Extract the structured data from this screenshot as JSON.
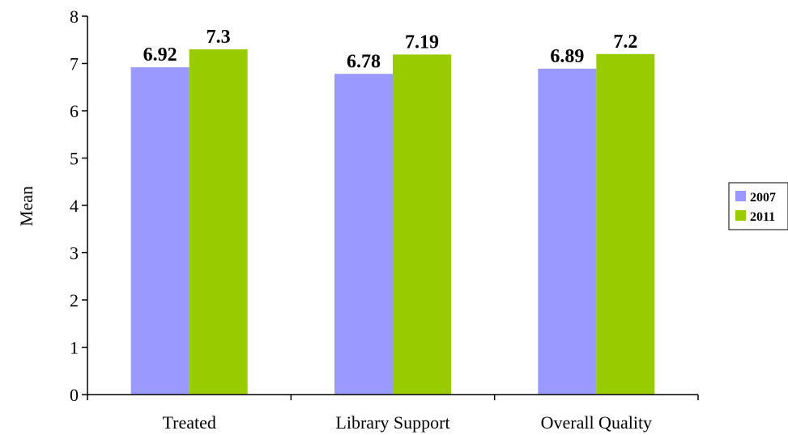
{
  "chart_data": {
    "type": "bar",
    "categories": [
      "Treated",
      "Library Support",
      "Overall Quality"
    ],
    "series": [
      {
        "name": "2007",
        "values": [
          6.92,
          6.78,
          6.89
        ],
        "labels": [
          "6.92",
          "6.78",
          "6.89"
        ],
        "color": "#9999ff"
      },
      {
        "name": "2011",
        "values": [
          7.3,
          7.19,
          7.2
        ],
        "labels": [
          "7.3",
          "7.19",
          "7.2"
        ],
        "color": "#99cc00"
      }
    ],
    "title": "",
    "xlabel": "",
    "ylabel": "Mean",
    "ylim": [
      0,
      8
    ],
    "yticks": [
      "0",
      "1",
      "2",
      "3",
      "4",
      "5",
      "6",
      "7",
      "8"
    ],
    "grid": false,
    "legend_position": "right"
  }
}
